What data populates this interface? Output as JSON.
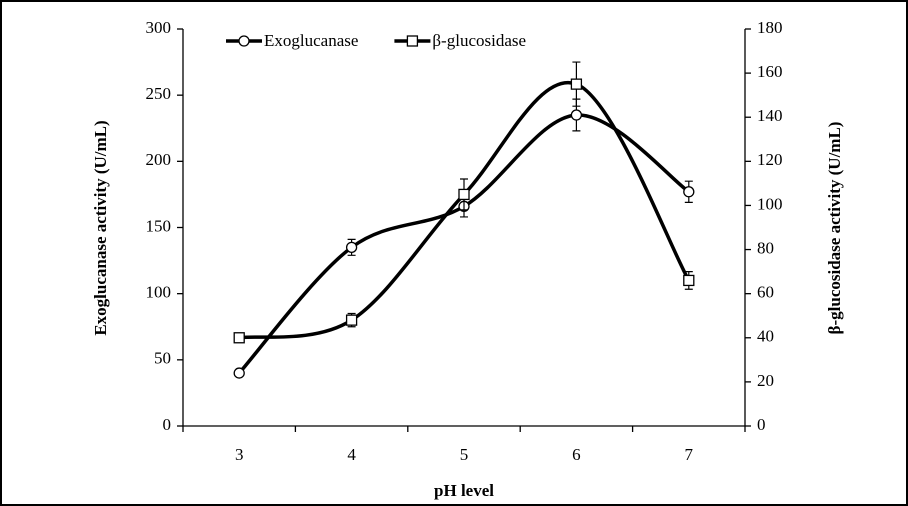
{
  "chart_data": {
    "type": "line",
    "x_label": "pH level",
    "y_label": "Exoglucanase activity (U/mL)",
    "y2_label": "β-glucosidase activity (U/mL)",
    "categories": [
      "3",
      "4",
      "5",
      "6",
      "7"
    ],
    "series": [
      {
        "name": "Exoglucanase",
        "color": "#000000",
        "marker": "circle",
        "values": [
          40,
          135,
          166,
          235,
          177
        ],
        "errors": [
          1,
          6,
          8,
          12,
          8
        ]
      },
      {
        "name": "β-glucosidase",
        "color": "#000000",
        "marker": "square",
        "axis": "y2",
        "values": [
          40,
          48,
          105,
          155,
          66
        ],
        "errors": [
          1.5,
          3,
          7,
          10,
          4
        ]
      }
    ],
    "ylim": [
      0,
      300
    ],
    "yticks": [
      0,
      50,
      100,
      150,
      200,
      250,
      300
    ],
    "y2lim": [
      0,
      180
    ],
    "y2ticks": [
      0,
      20,
      40,
      60,
      80,
      100,
      120,
      140,
      160,
      180
    ],
    "smooth": true,
    "legend": "top"
  }
}
